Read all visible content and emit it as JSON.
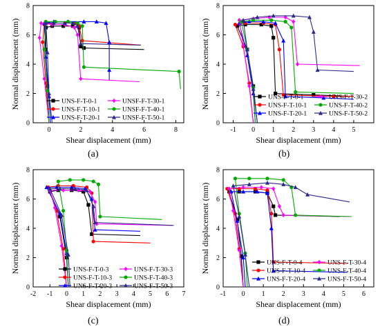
{
  "figure_labels": [
    "(a)",
    "(b)",
    "(c)",
    "(d)"
  ],
  "chart_data": [
    {
      "type": "line",
      "panel": "(a)",
      "xlabel": "Shear displacement (mm)",
      "ylabel": "Normal displacement (mm)",
      "xlim": [
        -1,
        8.5
      ],
      "ylim": [
        0,
        8
      ],
      "xticks": [
        0,
        2,
        4,
        6,
        8
      ],
      "yticks": [
        0,
        2,
        4,
        6,
        8
      ],
      "legend": "bottom",
      "legend_cols": 2,
      "series": [
        {
          "name": "UNS-F-T-0-1",
          "color": "#000000",
          "marker": "square",
          "x": [
            0.0,
            -0.1,
            -0.2,
            -0.2,
            0.2,
            0.9,
            1.5,
            1.9,
            2.0,
            2.2,
            6.0
          ],
          "y": [
            0.0,
            2.5,
            5.0,
            6.5,
            6.6,
            6.6,
            6.6,
            6.5,
            5.2,
            5.1,
            5.0
          ]
        },
        {
          "name": "UNS-F-T-10-1",
          "color": "#ff0000",
          "marker": "circle",
          "x": [
            0.0,
            -0.2,
            -0.4,
            -0.3,
            0.3,
            1.0,
            1.6,
            1.9,
            2.1,
            5.8
          ],
          "y": [
            0.0,
            2.7,
            5.5,
            6.7,
            6.8,
            6.8,
            6.8,
            6.6,
            5.6,
            5.3
          ]
        },
        {
          "name": "UNS-F-T-20-1",
          "color": "#0000ff",
          "marker": "triangle",
          "x": [
            0.1,
            0.0,
            -0.2,
            -0.3,
            0.3,
            1.2,
            2.2,
            3.0,
            3.6,
            3.8,
            3.8,
            3.8
          ],
          "y": [
            0.0,
            1.8,
            4.5,
            6.8,
            6.9,
            6.9,
            6.9,
            6.9,
            6.8,
            5.5,
            3.6,
            2.9
          ]
        },
        {
          "name": "UNSF-F-T-30-1",
          "color": "#ff00ff",
          "marker": "diamond",
          "x": [
            0.0,
            -0.3,
            -0.6,
            -0.5,
            0.2,
            1.0,
            1.6,
            1.8,
            2.0,
            5.7
          ],
          "y": [
            0.0,
            3.0,
            5.8,
            6.8,
            6.7,
            6.7,
            6.5,
            6.0,
            3.0,
            2.8
          ]
        },
        {
          "name": "UNSF-F-T-40-1",
          "color": "#00aa00",
          "marker": "circle",
          "x": [
            0.0,
            -0.1,
            -0.3,
            -0.2,
            0.4,
            1.2,
            1.8,
            2.1,
            2.2,
            8.2,
            8.3
          ],
          "y": [
            0.0,
            2.2,
            5.0,
            6.9,
            6.9,
            6.9,
            6.8,
            6.6,
            3.8,
            3.5,
            2.3
          ]
        },
        {
          "name": "UNSF-F-T-50-1",
          "color": "#2a2a8a",
          "marker": "triangle",
          "x": [
            0.2,
            0.0,
            -0.1,
            -0.2,
            0.3,
            1.0,
            1.5,
            1.8,
            2.0,
            5.8
          ],
          "y": [
            0.0,
            2.0,
            4.8,
            6.8,
            6.8,
            6.8,
            6.8,
            6.6,
            5.4,
            5.3
          ]
        }
      ]
    },
    {
      "type": "line",
      "panel": "(b)",
      "xlabel": "Shear displacement (mm)",
      "ylabel": "Normal displacement (mm)",
      "xlim": [
        -1.5,
        6
      ],
      "ylim": [
        0,
        8
      ],
      "xticks": [
        -1,
        0,
        1,
        2,
        3,
        4,
        5
      ],
      "yticks": [
        0,
        2,
        4,
        6,
        8
      ],
      "legend": "bottom-right",
      "legend_cols": 2,
      "series": [
        {
          "name": "UNS-F-T-0-1",
          "color": "#000000",
          "marker": "square",
          "x": [
            0.2,
            0.0,
            -0.3,
            -0.8,
            -0.4,
            0.4,
            0.9,
            1.0,
            1.1,
            3.0,
            5.0
          ],
          "y": [
            0.0,
            2.5,
            5.0,
            6.6,
            6.7,
            6.7,
            6.6,
            5.8,
            2.0,
            1.9,
            1.8
          ]
        },
        {
          "name": "UNS-F-T-10-1",
          "color": "#ff0000",
          "marker": "circle",
          "x": [
            0.0,
            -0.2,
            -0.5,
            -0.9,
            -0.4,
            0.5,
            1.1,
            1.3,
            1.5,
            4.0,
            5.0
          ],
          "y": [
            0.0,
            2.7,
            5.2,
            6.7,
            6.8,
            6.8,
            6.7,
            5.0,
            1.9,
            1.8,
            1.8
          ]
        },
        {
          "name": "UNS-F-T-20-1",
          "color": "#0000ff",
          "marker": "triangle",
          "x": [
            0.1,
            0.0,
            -0.3,
            -0.7,
            -0.2,
            0.5,
            1.1,
            1.5,
            1.6,
            3.5,
            5.0
          ],
          "y": [
            0.0,
            2.0,
            4.6,
            6.8,
            6.9,
            6.9,
            6.8,
            5.6,
            1.8,
            1.7,
            1.6
          ]
        },
        {
          "name": "UNS-F-T-30-2",
          "color": "#ff00ff",
          "marker": "diamond",
          "x": [
            0.0,
            -0.2,
            -0.5,
            -0.7,
            0.0,
            0.8,
            1.6,
            2.0,
            2.2,
            5.3
          ],
          "y": [
            0.0,
            2.5,
            5.3,
            7.0,
            7.1,
            7.2,
            7.2,
            6.9,
            4.0,
            3.9
          ]
        },
        {
          "name": "UNS-F-T-40-2",
          "color": "#00aa00",
          "marker": "circle",
          "x": [
            0.1,
            0.0,
            -0.3,
            -0.6,
            0.0,
            0.9,
            1.6,
            1.9,
            2.1,
            5.0
          ],
          "y": [
            0.0,
            2.4,
            5.0,
            6.9,
            7.0,
            7.0,
            6.9,
            6.5,
            2.1,
            2.0
          ]
        },
        {
          "name": "UNS-F-T-50-2",
          "color": "#2a2a8a",
          "marker": "triangle",
          "x": [
            0.2,
            0.0,
            -0.3,
            -0.5,
            0.2,
            1.0,
            2.0,
            2.8,
            3.0,
            3.2,
            5.0
          ],
          "y": [
            0.0,
            2.3,
            5.0,
            7.0,
            7.2,
            7.3,
            7.3,
            7.2,
            6.2,
            3.6,
            3.5
          ]
        }
      ]
    },
    {
      "type": "line",
      "panel": "(c)",
      "xlabel": "Shear displacement (mm)",
      "ylabel": "Normal displacement (mm)",
      "xlim": [
        -2,
        7
      ],
      "ylim": [
        0,
        8
      ],
      "xticks": [
        -2,
        -1,
        0,
        1,
        2,
        3,
        4,
        5,
        6,
        7
      ],
      "yticks": [
        0,
        2,
        4,
        6,
        8
      ],
      "legend": "bottom-right",
      "legend_cols": 2,
      "series": [
        {
          "name": "UNS-F-T-0-3",
          "color": "#000000",
          "marker": "square",
          "x": [
            0.1,
            0.0,
            -0.4,
            -1.0,
            -0.5,
            0.3,
            1.0,
            1.3,
            1.5,
            4.4
          ],
          "y": [
            0.0,
            2.0,
            4.8,
            6.5,
            6.6,
            6.6,
            6.5,
            5.6,
            3.6,
            3.5
          ]
        },
        {
          "name": "UNS-F-T-10-3",
          "color": "#ff0000",
          "marker": "circle",
          "x": [
            0.0,
            -0.2,
            -0.6,
            -1.1,
            -0.5,
            0.4,
            1.2,
            1.5,
            1.6,
            5.0
          ],
          "y": [
            0.0,
            2.6,
            5.2,
            6.8,
            6.9,
            6.9,
            6.8,
            6.4,
            3.1,
            3.0
          ]
        },
        {
          "name": "UNS-F-T-20-3",
          "color": "#0000ff",
          "marker": "triangle",
          "x": [
            0.1,
            0.0,
            -0.4,
            -1.2,
            -0.6,
            0.3,
            1.1,
            1.5,
            1.7,
            4.4
          ],
          "y": [
            0.0,
            2.3,
            5.0,
            6.8,
            6.8,
            6.8,
            6.7,
            6.0,
            3.9,
            3.8
          ]
        },
        {
          "name": "UNS-F-T-30-3",
          "color": "#ff00ff",
          "marker": "diamond",
          "x": [
            0.0,
            -0.3,
            -0.7,
            -1.0,
            -0.2,
            0.7,
            1.4,
            1.7,
            1.8,
            6.3
          ],
          "y": [
            0.0,
            2.8,
            5.4,
            6.6,
            6.6,
            6.6,
            6.5,
            5.8,
            4.3,
            4.2
          ]
        },
        {
          "name": "UNS-F-T-40-3",
          "color": "#00aa00",
          "marker": "circle",
          "x": [
            0.1,
            0.0,
            -0.2,
            -0.5,
            0.2,
            1.0,
            1.6,
            1.9,
            2.0,
            5.7
          ],
          "y": [
            0.0,
            2.5,
            5.2,
            7.2,
            7.3,
            7.3,
            7.2,
            7.0,
            4.8,
            4.6
          ]
        },
        {
          "name": "UNS-F-T-50-3",
          "color": "#2a2a8a",
          "marker": "triangle",
          "x": [
            0.2,
            0.1,
            -0.3,
            -1.0,
            -0.4,
            0.5,
            1.2,
            1.6,
            1.7,
            6.4
          ],
          "y": [
            0.0,
            2.2,
            4.9,
            6.7,
            6.7,
            6.7,
            6.6,
            5.5,
            4.4,
            4.2
          ]
        }
      ]
    },
    {
      "type": "line",
      "panel": "(d)",
      "xlabel": "Shear displacement (mm)",
      "ylabel": "Normal displacement (mm)",
      "xlim": [
        -1,
        6.5
      ],
      "ylim": [
        0,
        8
      ],
      "xticks": [
        -1,
        0,
        1,
        2,
        3,
        4,
        5,
        6
      ],
      "yticks": [
        0,
        2,
        4,
        6,
        8
      ],
      "legend": "bottom-right",
      "legend_cols": 2,
      "series": [
        {
          "name": "UNS-F-T-0-4",
          "color": "#000000",
          "marker": "square",
          "x": [
            0.0,
            -0.1,
            -0.3,
            -0.7,
            -0.2,
            0.6,
            1.2,
            1.5,
            1.6,
            4.8
          ],
          "y": [
            0.0,
            2.1,
            4.6,
            6.5,
            6.5,
            6.5,
            6.4,
            5.5,
            4.9,
            4.8
          ]
        },
        {
          "name": "UNS-F-T-10-4",
          "color": "#ff0000",
          "marker": "circle",
          "x": [
            0.0,
            -0.2,
            -0.4,
            -0.8,
            -0.2,
            0.6,
            1.2,
            1.4,
            1.5,
            5.2
          ],
          "y": [
            0.0,
            2.6,
            5.0,
            6.7,
            6.7,
            6.7,
            6.6,
            5.0,
            1.7,
            1.6
          ]
        },
        {
          "name": "UNS-F-T-20-4",
          "color": "#0000ff",
          "marker": "triangle",
          "x": [
            0.1,
            0.0,
            -0.3,
            -0.6,
            0.0,
            0.7,
            1.2,
            1.4,
            1.5,
            5.2
          ],
          "y": [
            0.0,
            2.0,
            4.5,
            6.5,
            6.5,
            6.5,
            6.4,
            4.0,
            1.1,
            1.0
          ]
        },
        {
          "name": "UNS-F-T-30-4",
          "color": "#ff00ff",
          "marker": "diamond",
          "x": [
            0.0,
            -0.2,
            -0.5,
            -0.7,
            0.0,
            0.9,
            1.5,
            1.8,
            2.0,
            5.3
          ],
          "y": [
            0.0,
            2.5,
            5.2,
            6.7,
            6.8,
            6.8,
            6.7,
            5.5,
            4.9,
            4.8
          ]
        },
        {
          "name": "UNS-F-T-40-4",
          "color": "#00aa00",
          "marker": "circle",
          "x": [
            0.2,
            0.1,
            -0.2,
            -0.4,
            0.3,
            1.2,
            2.0,
            2.4,
            2.6,
            5.4
          ],
          "y": [
            0.0,
            2.3,
            5.0,
            7.4,
            7.4,
            7.4,
            7.3,
            6.8,
            4.9,
            4.8
          ]
        },
        {
          "name": "UNS-F-T-50-4",
          "color": "#2a2a8a",
          "marker": "triangle",
          "x": [
            0.3,
            0.1,
            -0.2,
            -0.5,
            0.3,
            1.2,
            2.0,
            2.6,
            3.2,
            5.3
          ],
          "y": [
            0.0,
            2.2,
            4.8,
            6.9,
            7.0,
            7.1,
            7.0,
            6.8,
            6.3,
            5.8
          ]
        }
      ]
    }
  ]
}
